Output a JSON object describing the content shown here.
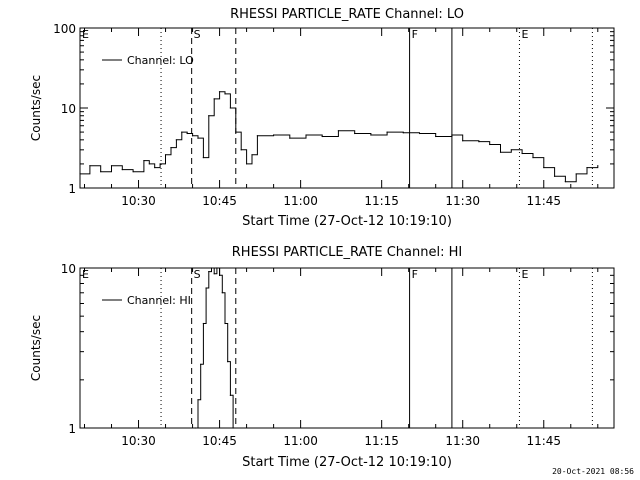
{
  "footer": {
    "timestamp": "20-Oct-2021 08:56"
  },
  "chart_data": [
    {
      "type": "line",
      "title": "RHESSI PARTICLE_RATE Channel: LO",
      "xlabel": "Start Time (27-Oct-12 10:19:10)",
      "ylabel": "Counts/sec",
      "yscale": "log",
      "xlim": [
        "10:19:10",
        "11:58:00"
      ],
      "ylim": [
        1,
        100
      ],
      "x_ticks": [
        "10:30",
        "10:45",
        "11:00",
        "11:15",
        "11:30",
        "11:45"
      ],
      "y_ticks": [
        "1",
        "10",
        "100"
      ],
      "legend": {
        "label": "Channel: LO",
        "position": "top-left"
      },
      "markers": [
        {
          "label": "E",
          "time": "10:19:10",
          "style": "none"
        },
        {
          "label": "",
          "time": "10:34:10",
          "style": "dotted"
        },
        {
          "label": "S",
          "time": "10:39:50",
          "style": "dashed"
        },
        {
          "label": "",
          "time": "10:48:00",
          "style": "dashed"
        },
        {
          "label": "F",
          "time": "11:20:10",
          "style": "solid"
        },
        {
          "label": "",
          "time": "11:28:00",
          "style": "solid"
        },
        {
          "label": "E",
          "time": "11:40:30",
          "style": "dotted"
        },
        {
          "label": "",
          "time": "11:54:00",
          "style": "dotted"
        }
      ],
      "series": [
        {
          "name": "Channel: LO",
          "x": [
            "10:19:10",
            "10:21:00",
            "10:23:00",
            "10:25:00",
            "10:27:00",
            "10:29:00",
            "10:31:00",
            "10:32:00",
            "10:33:00",
            "10:34:00",
            "10:35:00",
            "10:36:00",
            "10:37:00",
            "10:38:00",
            "10:39:00",
            "10:40:00",
            "10:41:00",
            "10:42:00",
            "10:43:00",
            "10:44:00",
            "10:45:00",
            "10:46:00",
            "10:47:00",
            "10:48:00",
            "10:49:00",
            "10:50:00",
            "10:51:00",
            "10:52:00",
            "10:55:00",
            "10:58:00",
            "11:01:00",
            "11:04:00",
            "11:07:00",
            "11:10:00",
            "11:13:00",
            "11:16:00",
            "11:19:00",
            "11:22:00",
            "11:25:00",
            "11:28:00",
            "11:30:00",
            "11:33:00",
            "11:35:00",
            "11:37:00",
            "11:39:00",
            "11:41:00",
            "11:43:00",
            "11:45:00",
            "11:47:00",
            "11:49:00",
            "11:51:00",
            "11:53:00",
            "11:55:00"
          ],
          "y": [
            1.5,
            1.9,
            1.6,
            1.9,
            1.7,
            1.6,
            2.2,
            2.0,
            1.8,
            2.0,
            2.6,
            3.2,
            4.0,
            5.0,
            4.8,
            4.5,
            4.2,
            2.4,
            8.0,
            13.0,
            16.0,
            15.0,
            10.0,
            5.0,
            3.0,
            2.0,
            2.6,
            4.5,
            4.6,
            4.2,
            4.6,
            4.4,
            5.2,
            4.8,
            4.6,
            5.0,
            4.9,
            4.8,
            4.4,
            4.6,
            3.9,
            3.8,
            3.5,
            2.8,
            3.0,
            2.7,
            2.4,
            1.8,
            1.4,
            1.2,
            1.5,
            1.8,
            1.9
          ]
        }
      ]
    },
    {
      "type": "line",
      "title": "RHESSI PARTICLE_RATE Channel: HI",
      "xlabel": "Start Time (27-Oct-12 10:19:10)",
      "ylabel": "Counts/sec",
      "yscale": "log",
      "xlim": [
        "10:19:10",
        "11:58:00"
      ],
      "ylim": [
        1,
        10
      ],
      "x_ticks": [
        "10:30",
        "10:45",
        "11:00",
        "11:15",
        "11:30",
        "11:45"
      ],
      "y_ticks": [
        "1",
        "10"
      ],
      "legend": {
        "label": "Channel: HI",
        "position": "top-left"
      },
      "markers": [
        {
          "label": "E",
          "time": "10:19:10",
          "style": "none"
        },
        {
          "label": "",
          "time": "10:34:10",
          "style": "dotted"
        },
        {
          "label": "S",
          "time": "10:39:50",
          "style": "dashed"
        },
        {
          "label": "",
          "time": "10:48:00",
          "style": "dashed"
        },
        {
          "label": "F",
          "time": "11:20:10",
          "style": "solid"
        },
        {
          "label": "",
          "time": "11:28:00",
          "style": "solid"
        },
        {
          "label": "E",
          "time": "11:40:30",
          "style": "dotted"
        },
        {
          "label": "",
          "time": "11:54:00",
          "style": "dotted"
        }
      ],
      "series": [
        {
          "name": "Channel: HI",
          "x": [
            "10:40:30",
            "10:41:00",
            "10:41:30",
            "10:42:00",
            "10:42:30",
            "10:43:00",
            "10:43:30",
            "10:44:00",
            "10:44:30",
            "10:45:00",
            "10:45:30",
            "10:46:00",
            "10:46:30",
            "10:47:00",
            "10:47:30"
          ],
          "y": [
            1.0,
            1.5,
            2.5,
            4.5,
            7.5,
            9.5,
            10.0,
            9.2,
            10.0,
            9.0,
            7.0,
            4.5,
            2.6,
            1.6,
            1.0
          ]
        }
      ]
    }
  ]
}
